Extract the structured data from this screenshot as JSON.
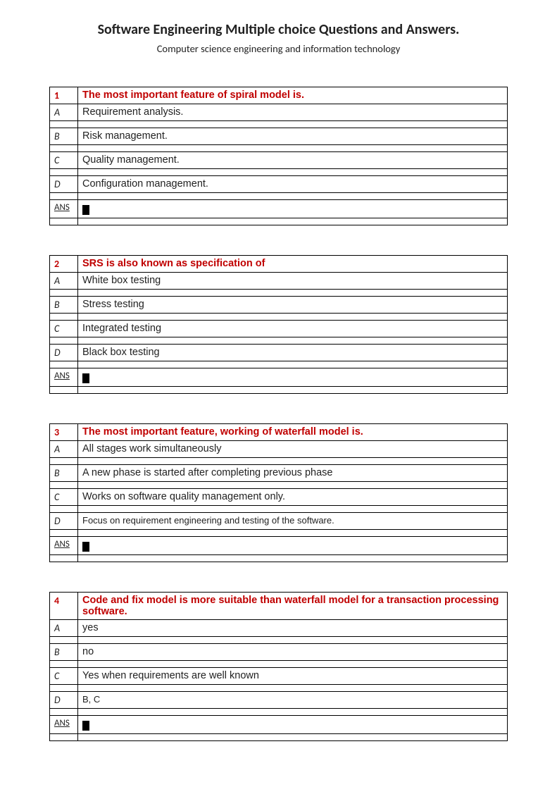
{
  "header": {
    "title": "Software Engineering Multiple choice Questions and Answers.",
    "subtitle": "Computer science engineering and information technology"
  },
  "labels": {
    "ans": "ANS",
    "a": "A",
    "b": "B",
    "c": "C",
    "d": "D"
  },
  "questions": [
    {
      "num": "1",
      "text": "The most important feature of spiral model is.",
      "a": "Requirement analysis.",
      "b": "Risk management.",
      "c": "Quality management.",
      "d": "Configuration management.",
      "d_small": false
    },
    {
      "num": "2",
      "text": "SRS is also known as specification of",
      "a": "White box testing",
      "b": " Stress testing",
      "c": " Integrated testing",
      "d": " Black box testing",
      "d_small": false
    },
    {
      "num": "3",
      "text": "The most important feature, working of waterfall model is.",
      "a": "All stages work simultaneously",
      "b": "A new phase is started after completing previous phase",
      "c": "Works on software quality management only.",
      "d": "Focus on requirement engineering and testing of the software.",
      "d_small": true
    },
    {
      "num": "4",
      "text": "Code and fix model is more suitable than waterfall model for a transaction processing software.",
      "a": "yes",
      "b": " no",
      "c": " Yes when requirements are well known",
      "d": " B, C",
      "d_small": true
    }
  ]
}
